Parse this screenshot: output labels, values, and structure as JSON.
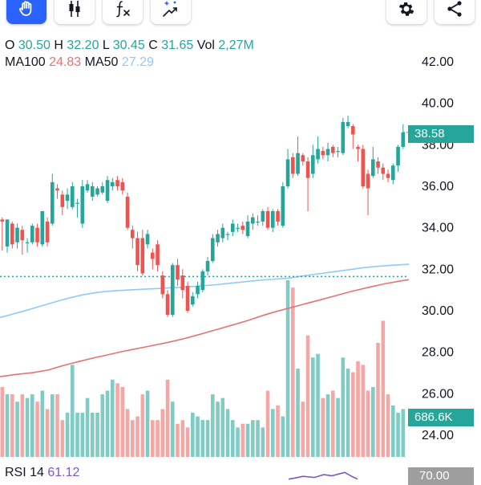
{
  "toolbar": {
    "left_buttons": [
      {
        "name": "hand-icon",
        "active": true
      },
      {
        "name": "candlestick-icon",
        "active": false
      },
      {
        "name": "indicator-fx-icon",
        "active": false
      },
      {
        "name": "magic-drawing-icon",
        "active": false
      }
    ],
    "right_buttons": [
      {
        "name": "gear-icon"
      },
      {
        "name": "share-icon"
      }
    ]
  },
  "ohlc": {
    "o_label": "O",
    "o_value": "30.50",
    "h_label": "H",
    "h_value": "32.20",
    "l_label": "L",
    "l_value": "30.45",
    "c_label": "C",
    "c_value": "31.65",
    "vol_label": "Vol",
    "vol_value": "2,27M"
  },
  "ma": {
    "ma100_label": "MA100",
    "ma100_value": "24.83",
    "ma50_label": "MA50",
    "ma50_value": "27.29"
  },
  "rsi": {
    "label": "RSI 14",
    "value": "61.12",
    "axis_tag": "70.00"
  },
  "tags": {
    "last_price": "38.58",
    "last_volume": "686.6K"
  },
  "colors": {
    "up": "#26a69a",
    "down": "#ef5350",
    "vol_up": "#80cbc4",
    "vol_down": "#f4a7a5",
    "ma100": "#e57373",
    "ma50": "#90caf9",
    "rsi": "#7e57c2",
    "grid_dotted": "#26a69a"
  },
  "chart_data": {
    "type": "candlestick",
    "y_axis_ticks": [
      "42.00",
      "40.00",
      "38.00",
      "36.00",
      "34.00",
      "32.00",
      "30.00",
      "28.00",
      "26.00",
      "24.00"
    ],
    "ylim": [
      23.4,
      42.7
    ],
    "reference_line": 31.65,
    "candles": [
      [
        34.4,
        34.3,
        34.5,
        32.9
      ],
      [
        33.1,
        34.4,
        34.4,
        32.8
      ],
      [
        34.2,
        33.2,
        34.3,
        33.0
      ],
      [
        33.3,
        34.0,
        34.2,
        33.0
      ],
      [
        33.9,
        33.4,
        34.1,
        32.7
      ],
      [
        33.3,
        33.3,
        33.5,
        32.8
      ],
      [
        33.3,
        34.1,
        34.2,
        33.2
      ],
      [
        34.0,
        33.3,
        34.2,
        33.1
      ],
      [
        33.2,
        34.8,
        34.8,
        33.1
      ],
      [
        34.3,
        33.3,
        34.5,
        33.1
      ],
      [
        34.2,
        36.2,
        36.6,
        34.1
      ],
      [
        35.9,
        35.8,
        36.1,
        35.4
      ],
      [
        35.6,
        35.0,
        35.8,
        34.6
      ],
      [
        35.3,
        35.6,
        35.9,
        34.9
      ],
      [
        35.0,
        36.0,
        36.2,
        34.9
      ],
      [
        35.2,
        35.2,
        35.4,
        34.5
      ],
      [
        34.2,
        36.0,
        36.3,
        34.0
      ],
      [
        35.8,
        36.1,
        36.3,
        35.7
      ],
      [
        35.5,
        36.0,
        36.2,
        35.3
      ],
      [
        35.6,
        35.9,
        36.0,
        35.5
      ],
      [
        35.7,
        36.0,
        36.2,
        35.6
      ],
      [
        35.3,
        36.3,
        36.5,
        35.2
      ],
      [
        36.0,
        36.2,
        36.4,
        35.8
      ],
      [
        36.3,
        36.0,
        36.5,
        35.8
      ],
      [
        36.2,
        35.8,
        36.4,
        35.6
      ],
      [
        35.5,
        34.0,
        35.7,
        33.9
      ],
      [
        33.9,
        33.5,
        34.1,
        33.0
      ],
      [
        33.5,
        32.2,
        33.8,
        31.9
      ],
      [
        33.5,
        31.8,
        33.9,
        31.7
      ],
      [
        33.2,
        33.7,
        33.9,
        33.0
      ],
      [
        32.8,
        32.5,
        33.0,
        32.0
      ],
      [
        33.2,
        32.2,
        33.4,
        31.9
      ],
      [
        31.7,
        30.8,
        31.9,
        30.6
      ],
      [
        30.8,
        29.8,
        31.0,
        29.7
      ],
      [
        29.8,
        32.2,
        32.3,
        29.7
      ],
      [
        32.2,
        31.5,
        32.5,
        31.2
      ],
      [
        31.7,
        31.0,
        32.0,
        30.6
      ],
      [
        31.2,
        30.0,
        31.4,
        29.9
      ],
      [
        30.3,
        30.7,
        30.9,
        30.2
      ],
      [
        30.8,
        31.2,
        31.4,
        30.6
      ],
      [
        31.0,
        31.9,
        32.0,
        30.9
      ],
      [
        31.9,
        32.4,
        32.6,
        31.7
      ],
      [
        32.4,
        33.5,
        33.7,
        32.3
      ],
      [
        33.3,
        33.7,
        33.9,
        33.1
      ],
      [
        33.5,
        34.0,
        34.2,
        33.3
      ],
      [
        33.7,
        33.7,
        33.8,
        33.4
      ],
      [
        33.8,
        34.2,
        34.4,
        33.6
      ],
      [
        34.0,
        34.0,
        34.2,
        33.8
      ],
      [
        34.1,
        33.9,
        34.3,
        33.7
      ],
      [
        33.6,
        34.3,
        34.6,
        33.5
      ],
      [
        34.2,
        34.5,
        34.7,
        33.9
      ],
      [
        34.3,
        34.3,
        34.6,
        34.1
      ],
      [
        34.3,
        34.8,
        34.9,
        34.1
      ],
      [
        34.8,
        34.0,
        35.0,
        33.9
      ],
      [
        34.0,
        34.8,
        34.9,
        33.8
      ],
      [
        34.8,
        34.3,
        34.9,
        34.1
      ],
      [
        34.1,
        36.0,
        36.2,
        34.0
      ],
      [
        36.0,
        37.3,
        37.8,
        35.9
      ],
      [
        37.4,
        36.6,
        37.6,
        36.4
      ],
      [
        36.6,
        37.6,
        38.4,
        36.5
      ],
      [
        37.5,
        37.2,
        37.6,
        37.0
      ],
      [
        37.2,
        36.4,
        37.4,
        34.8
      ],
      [
        36.6,
        37.5,
        38.0,
        36.4
      ],
      [
        37.3,
        37.8,
        38.4,
        37.1
      ],
      [
        37.7,
        37.5,
        37.9,
        37.3
      ],
      [
        37.5,
        37.8,
        38.1,
        37.2
      ],
      [
        37.9,
        37.6,
        38.0,
        37.4
      ],
      [
        37.7,
        37.7,
        37.9,
        37.4
      ],
      [
        37.6,
        39.1,
        39.3,
        37.5
      ],
      [
        38.9,
        39.1,
        39.4,
        38.8
      ],
      [
        38.9,
        38.5,
        39.0,
        37.8
      ],
      [
        37.9,
        37.8,
        38.0,
        37.2
      ],
      [
        37.8,
        36.0,
        38.0,
        35.9
      ],
      [
        36.6,
        35.9,
        36.8,
        34.6
      ],
      [
        36.5,
        37.3,
        37.9,
        36.4
      ],
      [
        37.2,
        36.9,
        37.4,
        36.6
      ],
      [
        36.9,
        36.6,
        37.1,
        36.3
      ],
      [
        36.6,
        36.4,
        36.8,
        36.2
      ],
      [
        36.3,
        37.0,
        37.1,
        36.1
      ],
      [
        37.0,
        37.9,
        38.0,
        36.7
      ],
      [
        37.9,
        38.6,
        39.0,
        37.8
      ]
    ],
    "volume_ylim": [
      0,
      8.0
    ],
    "volume_millions": [
      1.9,
      1.7,
      1.7,
      1.5,
      1.7,
      1.6,
      1.7,
      1.5,
      1.8,
      1.3,
      1.7,
      1.7,
      1.0,
      1.2,
      2.5,
      1.2,
      1.2,
      1.6,
      1.2,
      1.2,
      1.7,
      1.8,
      2.1,
      2.0,
      1.9,
      1.3,
      1.0,
      1.1,
      1.7,
      1.8,
      1.0,
      1.0,
      1.3,
      2.1,
      1.5,
      0.9,
      1.0,
      0.8,
      1.2,
      1.1,
      1.0,
      1.0,
      1.7,
      1.5,
      1.6,
      1.3,
      1.0,
      0.8,
      0.9,
      0.9,
      1.0,
      1.0,
      0.8,
      1.8,
      1.3,
      1.4,
      1.1,
      4.8,
      4.6,
      2.4,
      1.5,
      3.3,
      2.7,
      2.8,
      1.6,
      1.7,
      1.8,
      1.6,
      2.7,
      2.4,
      2.3,
      2.6,
      2.5,
      1.8,
      1.9,
      3.1,
      3.7,
      1.7,
      1.4,
      1.2,
      1.3
    ],
    "ma100": [
      [
        0,
        28.2
      ],
      [
        20,
        29.3
      ],
      [
        40,
        30.1
      ],
      [
        60,
        31.4
      ],
      [
        70,
        32.6
      ],
      [
        82,
        33.9
      ],
      [
        100,
        35.7
      ],
      [
        116,
        37.2
      ],
      [
        134,
        38.7
      ],
      [
        152,
        40.3
      ],
      [
        170,
        41.7
      ],
      [
        190,
        43.2
      ],
      [
        210,
        44.8
      ],
      [
        230,
        46.6
      ],
      [
        250,
        48.7
      ],
      [
        270,
        50.9
      ],
      [
        290,
        53.1
      ],
      [
        310,
        55.4
      ],
      [
        330,
        58.0
      ],
      [
        345,
        59.7
      ],
      [
        360,
        61.2
      ],
      [
        380,
        63.3
      ],
      [
        400,
        65.3
      ],
      [
        420,
        67.4
      ],
      [
        440,
        69.5
      ],
      [
        460,
        71.3
      ],
      [
        480,
        73.0
      ],
      [
        500,
        74.4
      ],
      [
        510,
        75.0
      ]
    ],
    "ma50": [
      [
        0,
        56.7
      ],
      [
        15,
        58.3
      ],
      [
        30,
        59.9
      ],
      [
        45,
        61.6
      ],
      [
        60,
        63.3
      ],
      [
        75,
        65.0
      ],
      [
        90,
        66.5
      ],
      [
        105,
        67.8
      ],
      [
        120,
        68.8
      ],
      [
        135,
        69.4
      ],
      [
        150,
        69.8
      ],
      [
        165,
        70.1
      ],
      [
        180,
        70.4
      ],
      [
        195,
        70.7
      ],
      [
        210,
        71.0
      ],
      [
        225,
        71.3
      ],
      [
        240,
        71.7
      ],
      [
        255,
        72.1
      ],
      [
        270,
        72.6
      ],
      [
        285,
        73.2
      ],
      [
        300,
        73.8
      ],
      [
        315,
        74.4
      ],
      [
        330,
        74.9
      ],
      [
        345,
        75.3
      ],
      [
        360,
        75.7
      ],
      [
        375,
        76.6
      ],
      [
        390,
        77.4
      ],
      [
        405,
        78.2
      ],
      [
        420,
        79.0
      ],
      [
        435,
        79.8
      ],
      [
        450,
        80.6
      ],
      [
        465,
        81.2
      ],
      [
        480,
        81.7
      ],
      [
        495,
        82.1
      ],
      [
        510,
        82.4
      ]
    ],
    "rsi_visible": [
      [
        360,
        31
      ],
      [
        368,
        29
      ],
      [
        378,
        26
      ],
      [
        392,
        28
      ],
      [
        404,
        23
      ],
      [
        414,
        25
      ],
      [
        430,
        19
      ],
      [
        440,
        27
      ],
      [
        446,
        31
      ]
    ]
  }
}
